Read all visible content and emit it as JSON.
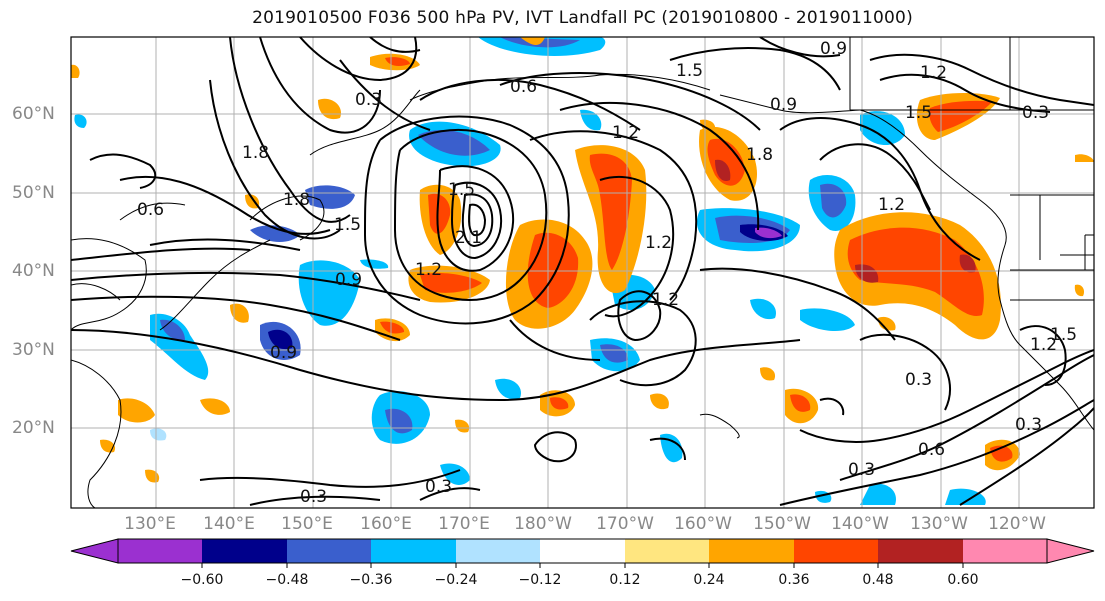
{
  "title": "2019010500 F036 500 hPa PV, IVT Landfall PC (2019010800 - 2019011000)",
  "lat_labels": [
    "60°N",
    "50°N",
    "40°N",
    "30°N",
    "20°N"
  ],
  "lon_labels": [
    "130°E",
    "140°E",
    "150°E",
    "160°E",
    "170°E",
    "180°W",
    "170°W",
    "160°W",
    "150°W",
    "140°W",
    "130°W",
    "120°W"
  ],
  "colorbar": {
    "ticks": [
      "−0.60",
      "−0.48",
      "−0.36",
      "−0.24",
      "−0.12",
      "0.12",
      "0.24",
      "0.36",
      "0.48",
      "0.60"
    ],
    "colors": [
      "#9b30d0",
      "#00008b",
      "#3a5fcd",
      "#00bfff",
      "#b0e2ff",
      "#ffffff",
      "#ffe680",
      "#ffa500",
      "#ff4500",
      "#b22222",
      "#ff88b0"
    ]
  },
  "contour_labels": [
    "0.9",
    "1.2",
    "0.3",
    "0.6",
    "1.2",
    "1.5",
    "0.9",
    "1.5",
    "0.3",
    "1.8",
    "1.8",
    "0.6",
    "1.5",
    "1.5",
    "2.1",
    "1.8",
    "0.9",
    "1.2",
    "1.2",
    "1.2",
    "1.2",
    "0.3",
    "0.3",
    "0.6",
    "0.3",
    "0.3",
    "0.9",
    "1.2",
    "1.5",
    "0.3"
  ]
}
